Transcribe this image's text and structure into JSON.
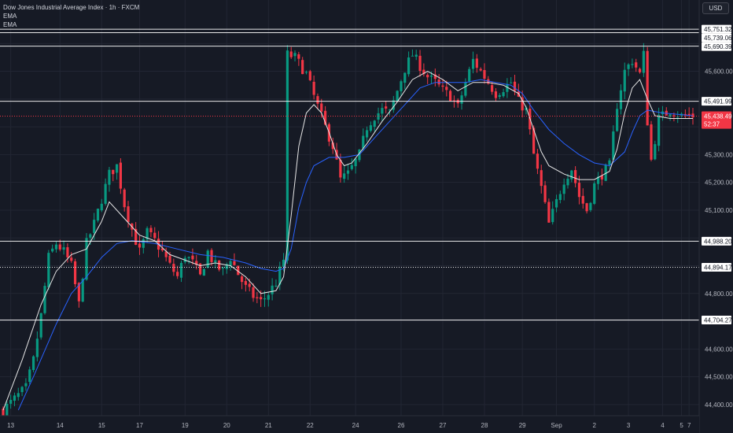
{
  "header": {
    "title": "Dow Jones Industrial Average Index · 1h · FXCM",
    "indicators": [
      "EMA",
      "EMA"
    ],
    "currency": "USD"
  },
  "price_tag": {
    "value": "45,438.49",
    "countdown": "52:37",
    "color": "#f23645"
  },
  "colors": {
    "background": "#161a25",
    "grid": "#222633",
    "up": "#089981",
    "down": "#f23645",
    "ema_fast": "#e6e6e6",
    "ema_slow": "#2962ff",
    "level_line": "#ffffff",
    "axis_text": "#b2b5be"
  },
  "chart_data": {
    "type": "candlestick",
    "title": "Dow Jones Industrial Average Index · 1h · FXCM",
    "x_tick_labels": [
      "13",
      "14",
      "15",
      "17",
      "19",
      "20",
      "21",
      "22",
      "24",
      "26",
      "27",
      "28",
      "29",
      "Sep",
      "2",
      "3",
      "4",
      "5",
      "7"
    ],
    "y_tick_labels": [
      44400,
      44500,
      44600,
      44800,
      45100,
      45200,
      45300,
      45600
    ],
    "ylim": [
      44360,
      45800
    ],
    "horizontal_levels": [
      {
        "value": 45751.32,
        "label": "45,751.32",
        "style": "solid"
      },
      {
        "value": 45739.06,
        "label": "45,739.06",
        "style": "solid"
      },
      {
        "value": 45690.39,
        "label": "45,690.39",
        "style": "solid"
      },
      {
        "value": 45491.99,
        "label": "45,491.99",
        "style": "solid"
      },
      {
        "value": 44988.2,
        "label": "44,988.20",
        "style": "solid"
      },
      {
        "value": 44894.17,
        "label": "44,894.17",
        "style": "dotted"
      },
      {
        "value": 44704.27,
        "label": "44,704.27",
        "style": "solid"
      }
    ],
    "current_price": 45438.49,
    "close_path": [
      [
        0,
        44380
      ],
      [
        3,
        44420
      ],
      [
        6,
        44460
      ],
      [
        8,
        44560
      ],
      [
        10,
        44720
      ],
      [
        12,
        44930
      ],
      [
        14,
        44980
      ],
      [
        16,
        44950
      ],
      [
        18,
        44900
      ],
      [
        20,
        44760
      ],
      [
        22,
        44980
      ],
      [
        24,
        45050
      ],
      [
        26,
        45140
      ],
      [
        28,
        45230
      ],
      [
        30,
        45260
      ],
      [
        32,
        45120
      ],
      [
        34,
        45030
      ],
      [
        36,
        44950
      ],
      [
        38,
        45020
      ],
      [
        40,
        44990
      ],
      [
        42,
        44950
      ],
      [
        44,
        44900
      ],
      [
        46,
        44860
      ],
      [
        48,
        44940
      ],
      [
        50,
        44910
      ],
      [
        52,
        44860
      ],
      [
        54,
        44950
      ],
      [
        56,
        44900
      ],
      [
        58,
        44880
      ],
      [
        60,
        44930
      ],
      [
        62,
        44870
      ],
      [
        64,
        44820
      ],
      [
        66,
        44790
      ],
      [
        68,
        44770
      ],
      [
        70,
        44800
      ],
      [
        72,
        44840
      ],
      [
        74,
        44920
      ],
      [
        75,
        45660
      ],
      [
        77,
        45650
      ],
      [
        80,
        45590
      ],
      [
        82,
        45510
      ],
      [
        85,
        45400
      ],
      [
        87,
        45330
      ],
      [
        89,
        45210
      ],
      [
        91,
        45230
      ],
      [
        94,
        45300
      ],
      [
        96,
        45400
      ],
      [
        98,
        45440
      ],
      [
        100,
        45460
      ],
      [
        102,
        45450
      ],
      [
        104,
        45530
      ],
      [
        106,
        45610
      ],
      [
        108,
        45660
      ],
      [
        110,
        45620
      ],
      [
        112,
        45580
      ],
      [
        114,
        45560
      ],
      [
        116,
        45530
      ],
      [
        118,
        45510
      ],
      [
        120,
        45470
      ],
      [
        122,
        45560
      ],
      [
        124,
        45640
      ],
      [
        126,
        45600
      ],
      [
        128,
        45560
      ],
      [
        130,
        45520
      ],
      [
        132,
        45540
      ],
      [
        134,
        45560
      ],
      [
        136,
        45490
      ],
      [
        138,
        45460
      ],
      [
        140,
        45300
      ],
      [
        142,
        45180
      ],
      [
        144,
        45050
      ],
      [
        146,
        45130
      ],
      [
        148,
        45210
      ],
      [
        150,
        45250
      ],
      [
        152,
        45150
      ],
      [
        154,
        45100
      ],
      [
        156,
        45190
      ],
      [
        158,
        45230
      ],
      [
        160,
        45260
      ],
      [
        162,
        45480
      ],
      [
        164,
        45600
      ],
      [
        166,
        45640
      ],
      [
        168,
        45590
      ],
      [
        169,
        45660
      ],
      [
        170,
        45420
      ],
      [
        171,
        45280
      ],
      [
        173,
        45430
      ],
      [
        176,
        45460
      ],
      [
        179,
        45440
      ],
      [
        182,
        45440
      ]
    ],
    "ema_fast": [
      [
        0,
        44380
      ],
      [
        5,
        44560
      ],
      [
        10,
        44760
      ],
      [
        14,
        44880
      ],
      [
        18,
        44940
      ],
      [
        22,
        44960
      ],
      [
        26,
        45060
      ],
      [
        28,
        45130
      ],
      [
        32,
        45070
      ],
      [
        36,
        45010
      ],
      [
        40,
        44990
      ],
      [
        44,
        44940
      ],
      [
        48,
        44920
      ],
      [
        52,
        44900
      ],
      [
        56,
        44910
      ],
      [
        60,
        44900
      ],
      [
        64,
        44860
      ],
      [
        68,
        44800
      ],
      [
        72,
        44810
      ],
      [
        74,
        44860
      ],
      [
        76,
        45080
      ],
      [
        78,
        45330
      ],
      [
        80,
        45450
      ],
      [
        82,
        45480
      ],
      [
        84,
        45450
      ],
      [
        86,
        45380
      ],
      [
        88,
        45300
      ],
      [
        90,
        45260
      ],
      [
        92,
        45270
      ],
      [
        96,
        45340
      ],
      [
        100,
        45420
      ],
      [
        104,
        45490
      ],
      [
        108,
        45570
      ],
      [
        112,
        45600
      ],
      [
        116,
        45570
      ],
      [
        120,
        45530
      ],
      [
        124,
        45560
      ],
      [
        128,
        45560
      ],
      [
        132,
        45550
      ],
      [
        136,
        45520
      ],
      [
        138,
        45470
      ],
      [
        140,
        45390
      ],
      [
        142,
        45310
      ],
      [
        144,
        45260
      ],
      [
        148,
        45230
      ],
      [
        152,
        45210
      ],
      [
        156,
        45210
      ],
      [
        160,
        45240
      ],
      [
        162,
        45320
      ],
      [
        164,
        45450
      ],
      [
        166,
        45540
      ],
      [
        168,
        45570
      ],
      [
        170,
        45500
      ],
      [
        172,
        45440
      ],
      [
        176,
        45430
      ],
      [
        182,
        45430
      ]
    ],
    "ema_slow": [
      [
        4,
        44380
      ],
      [
        8,
        44500
      ],
      [
        14,
        44690
      ],
      [
        18,
        44800
      ],
      [
        22,
        44860
      ],
      [
        26,
        44930
      ],
      [
        30,
        44980
      ],
      [
        34,
        44990
      ],
      [
        40,
        44980
      ],
      [
        46,
        44960
      ],
      [
        52,
        44940
      ],
      [
        58,
        44930
      ],
      [
        64,
        44910
      ],
      [
        68,
        44890
      ],
      [
        72,
        44880
      ],
      [
        74,
        44890
      ],
      [
        76,
        44960
      ],
      [
        78,
        45110
      ],
      [
        80,
        45200
      ],
      [
        82,
        45260
      ],
      [
        86,
        45290
      ],
      [
        90,
        45290
      ],
      [
        94,
        45300
      ],
      [
        98,
        45360
      ],
      [
        102,
        45420
      ],
      [
        106,
        45480
      ],
      [
        110,
        45540
      ],
      [
        114,
        45560
      ],
      [
        118,
        45560
      ],
      [
        122,
        45560
      ],
      [
        126,
        45570
      ],
      [
        130,
        45560
      ],
      [
        134,
        45550
      ],
      [
        137,
        45520
      ],
      [
        140,
        45460
      ],
      [
        144,
        45390
      ],
      [
        148,
        45340
      ],
      [
        152,
        45300
      ],
      [
        156,
        45270
      ],
      [
        160,
        45260
      ],
      [
        164,
        45310
      ],
      [
        166,
        45380
      ],
      [
        168,
        45440
      ],
      [
        170,
        45460
      ],
      [
        174,
        45450
      ],
      [
        182,
        45440
      ]
    ]
  }
}
